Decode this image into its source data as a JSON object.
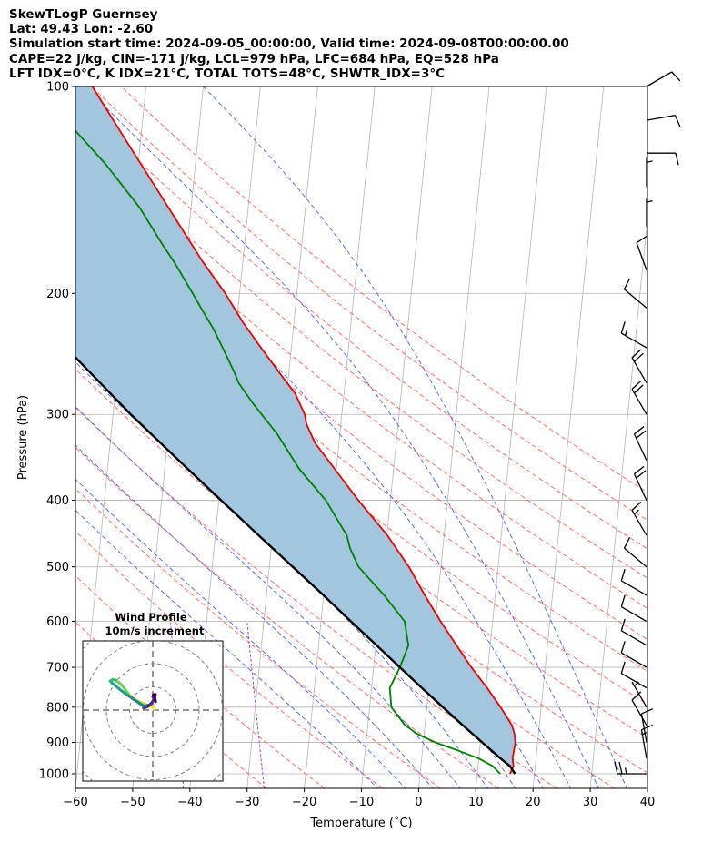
{
  "header": {
    "line1": "SkewTLogP Guernsey",
    "line2": "Lat: 49.43   Lon: -2.60",
    "line3": "Simulation start time: 2024-09-05_00:00:00, Valid time: 2024-09-08T00:00:00.00",
    "line4": "CAPE=22 j/kg, CIN=-171 j/kg, LCL=979 hPa, LFC=684 hPa, EQ=528 hPa",
    "line5": "LFT IDX=0°C, K IDX=21°C, TOTAL TOTS=48°C, SHWTR_IDX=3°C"
  },
  "chart_data": {
    "type": "skewt-logp",
    "xlabel": "Temperature (˚C)",
    "ylabel": "Pressure (hPa)",
    "xlim": [
      -60,
      40
    ],
    "ylim": [
      1050,
      100
    ],
    "x_ticks": [
      -60,
      -50,
      -40,
      -30,
      -20,
      -10,
      0,
      10,
      20,
      30,
      40
    ],
    "x_tick_labels": [
      "−60",
      "−50",
      "−40",
      "−30",
      "−20",
      "−10",
      "0",
      "10",
      "20",
      "30",
      "40"
    ],
    "y_ticks": [
      1000,
      900,
      800,
      700,
      600,
      500,
      400,
      300,
      200,
      100
    ],
    "y_tick_labels": [
      "1000",
      "900",
      "800",
      "700",
      "600",
      "500",
      "400",
      "300",
      "200",
      "100"
    ],
    "grid": true,
    "colors": {
      "temperature": "#ee0000",
      "dewpoint": "#008000",
      "parcel": "#000000",
      "cape_fill": "#a3c6df",
      "dry_adiabat": "#ff6b6b",
      "moist_adiabat": "#5b6cf0",
      "mixing_ratio": "#9a4fbf",
      "isotherm": "#b5b5b5"
    },
    "series": [
      {
        "key": "temperature",
        "points": [
          [
            1000,
            15.7
          ],
          [
            975,
            16.2
          ],
          [
            950,
            15.9
          ],
          [
            925,
            16.0
          ],
          [
            900,
            16.1
          ],
          [
            875,
            15.8
          ],
          [
            850,
            15.2
          ],
          [
            800,
            12.9
          ],
          [
            750,
            10.2
          ],
          [
            700,
            7.1
          ],
          [
            650,
            4.1
          ],
          [
            600,
            0.9
          ],
          [
            550,
            -2.3
          ],
          [
            500,
            -5.6
          ],
          [
            450,
            -9.9
          ],
          [
            400,
            -15.6
          ],
          [
            360,
            -20.3
          ],
          [
            330,
            -24.2
          ],
          [
            310,
            -26.0
          ],
          [
            300,
            -26.5
          ],
          [
            280,
            -28.5
          ],
          [
            260,
            -31.8
          ],
          [
            240,
            -35.3
          ],
          [
            220,
            -39.0
          ],
          [
            200,
            -42.5
          ],
          [
            180,
            -47.0
          ],
          [
            160,
            -51.5
          ],
          [
            140,
            -56.6
          ],
          [
            120,
            -62.5
          ],
          [
            100,
            -69.4
          ]
        ]
      },
      {
        "key": "dewpoint",
        "points": [
          [
            1000,
            14.0
          ],
          [
            975,
            12.6
          ],
          [
            950,
            10.0
          ],
          [
            925,
            6.2
          ],
          [
            900,
            2.1
          ],
          [
            875,
            -1.2
          ],
          [
            850,
            -3.5
          ],
          [
            800,
            -6.2
          ],
          [
            750,
            -6.8
          ],
          [
            700,
            -5.4
          ],
          [
            650,
            -4.3
          ],
          [
            600,
            -5.4
          ],
          [
            550,
            -9.4
          ],
          [
            500,
            -14.4
          ],
          [
            470,
            -16.2
          ],
          [
            450,
            -17.0
          ],
          [
            400,
            -21.3
          ],
          [
            360,
            -26.5
          ],
          [
            320,
            -31.0
          ],
          [
            290,
            -35.6
          ],
          [
            270,
            -38.6
          ],
          [
            260,
            -39.6
          ],
          [
            240,
            -42.0
          ],
          [
            225,
            -44.0
          ],
          [
            210,
            -46.5
          ],
          [
            200,
            -48.2
          ],
          [
            180,
            -52.0
          ],
          [
            170,
            -54.3
          ],
          [
            150,
            -59.0
          ],
          [
            130,
            -65.6
          ],
          [
            115,
            -72.0
          ],
          [
            100,
            -78.7
          ]
        ]
      },
      {
        "key": "parcel",
        "points": [
          [
            1000,
            16.6
          ],
          [
            975,
            15.6
          ],
          [
            950,
            13.8
          ],
          [
            900,
            10.3
          ],
          [
            850,
            6.6
          ],
          [
            800,
            2.8
          ],
          [
            750,
            -1.2
          ],
          [
            700,
            -5.4
          ],
          [
            650,
            -9.9
          ],
          [
            600,
            -14.8
          ],
          [
            550,
            -20.0
          ],
          [
            500,
            -25.9
          ],
          [
            450,
            -32.4
          ],
          [
            400,
            -39.6
          ],
          [
            350,
            -47.7
          ],
          [
            300,
            -56.9
          ],
          [
            250,
            -67.1
          ],
          [
            200,
            -79.2
          ],
          [
            150,
            -94.7
          ],
          [
            100,
            -116.5
          ]
        ]
      }
    ],
    "isotherms_c": [
      -160,
      -150,
      -140,
      -130,
      -120,
      -110,
      -100,
      -90,
      -80,
      -70,
      -60,
      -50,
      -40,
      -30,
      -20,
      -10,
      0,
      10,
      20,
      30,
      40
    ],
    "dry_adiabats_c": [
      -30,
      -20,
      -10,
      0,
      10,
      20,
      30,
      40,
      50,
      60,
      70,
      80,
      90,
      100,
      110,
      120,
      130
    ],
    "moist_adiabats_c": [
      -10,
      -5,
      0,
      5,
      10,
      15,
      20,
      25,
      30,
      35
    ],
    "mixing_ratios_gkg": [
      0.1,
      0.4
    ],
    "wind_barbs": [
      {
        "p": 1000,
        "spd": 25,
        "dir": 270
      },
      {
        "p": 950,
        "spd": 15,
        "dir": 350
      },
      {
        "p": 900,
        "spd": 10,
        "dir": 350
      },
      {
        "p": 850,
        "spd": 10,
        "dir": 330
      },
      {
        "p": 800,
        "spd": 5,
        "dir": 330
      },
      {
        "p": 750,
        "spd": 10,
        "dir": 300
      },
      {
        "p": 700,
        "spd": 10,
        "dir": 300
      },
      {
        "p": 650,
        "spd": 10,
        "dir": 300
      },
      {
        "p": 600,
        "spd": 10,
        "dir": 300
      },
      {
        "p": 550,
        "spd": 10,
        "dir": 300
      },
      {
        "p": 500,
        "spd": 10,
        "dir": 310
      },
      {
        "p": 450,
        "spd": 15,
        "dir": 330
      },
      {
        "p": 400,
        "spd": 20,
        "dir": 335
      },
      {
        "p": 350,
        "spd": 20,
        "dir": 335
      },
      {
        "p": 300,
        "spd": 20,
        "dir": 330
      },
      {
        "p": 270,
        "spd": 20,
        "dir": 330
      },
      {
        "p": 240,
        "spd": 15,
        "dir": 300
      },
      {
        "p": 210,
        "spd": 10,
        "dir": 310
      },
      {
        "p": 185,
        "spd": 10,
        "dir": 340
      },
      {
        "p": 160,
        "spd": 5,
        "dir": 0
      },
      {
        "p": 140,
        "spd": 5,
        "dir": 0
      },
      {
        "p": 125,
        "spd": 10,
        "dir": 90
      },
      {
        "p": 112,
        "spd": 10,
        "dir": 80
      },
      {
        "p": 100,
        "spd": 10,
        "dir": 60
      }
    ],
    "hodograph": {
      "title": "Wind Profile",
      "subtitle": "10m/s increment",
      "ring_step_ms": 10,
      "trace_uv": [
        [
          0.5,
          0.5
        ],
        [
          0.2,
          1.0
        ],
        [
          -0.5,
          1.6
        ],
        [
          -1.2,
          1.7
        ],
        [
          -2.6,
          2.2
        ],
        [
          -4.5,
          3.0
        ],
        [
          -6.5,
          3.9
        ],
        [
          -8.8,
          5.3
        ],
        [
          -10.5,
          7.1
        ],
        [
          -12.0,
          8.9
        ],
        [
          -13.0,
          10.4
        ],
        [
          -14.5,
          11.8
        ],
        [
          -16.0,
          12.9
        ],
        [
          -17.5,
          13.1
        ],
        [
          -18.4,
          12.5
        ],
        [
          -17.6,
          11.7
        ],
        [
          -16.2,
          10.6
        ],
        [
          -14.2,
          8.9
        ],
        [
          -12.4,
          7.5
        ],
        [
          -10.2,
          6.0
        ],
        [
          -8.2,
          4.6
        ],
        [
          -6.1,
          3.2
        ],
        [
          -4.4,
          2.0
        ],
        [
          -3.0,
          1.7
        ],
        [
          -2.2,
          2.1
        ],
        [
          -1.9,
          1.6
        ],
        [
          -2.5,
          1.3
        ],
        [
          -3.3,
          1.1
        ],
        [
          -4.0,
          0.9
        ],
        [
          -3.2,
          1.2
        ],
        [
          -2.0,
          1.8
        ],
        [
          -0.8,
          2.7
        ],
        [
          0.2,
          4.1
        ],
        [
          0.4,
          5.2
        ],
        [
          0.0,
          5.9
        ],
        [
          0.4,
          6.7
        ],
        [
          1.1,
          6.7
        ],
        [
          0.9,
          5.4
        ],
        [
          1.2,
          3.6
        ]
      ]
    }
  }
}
